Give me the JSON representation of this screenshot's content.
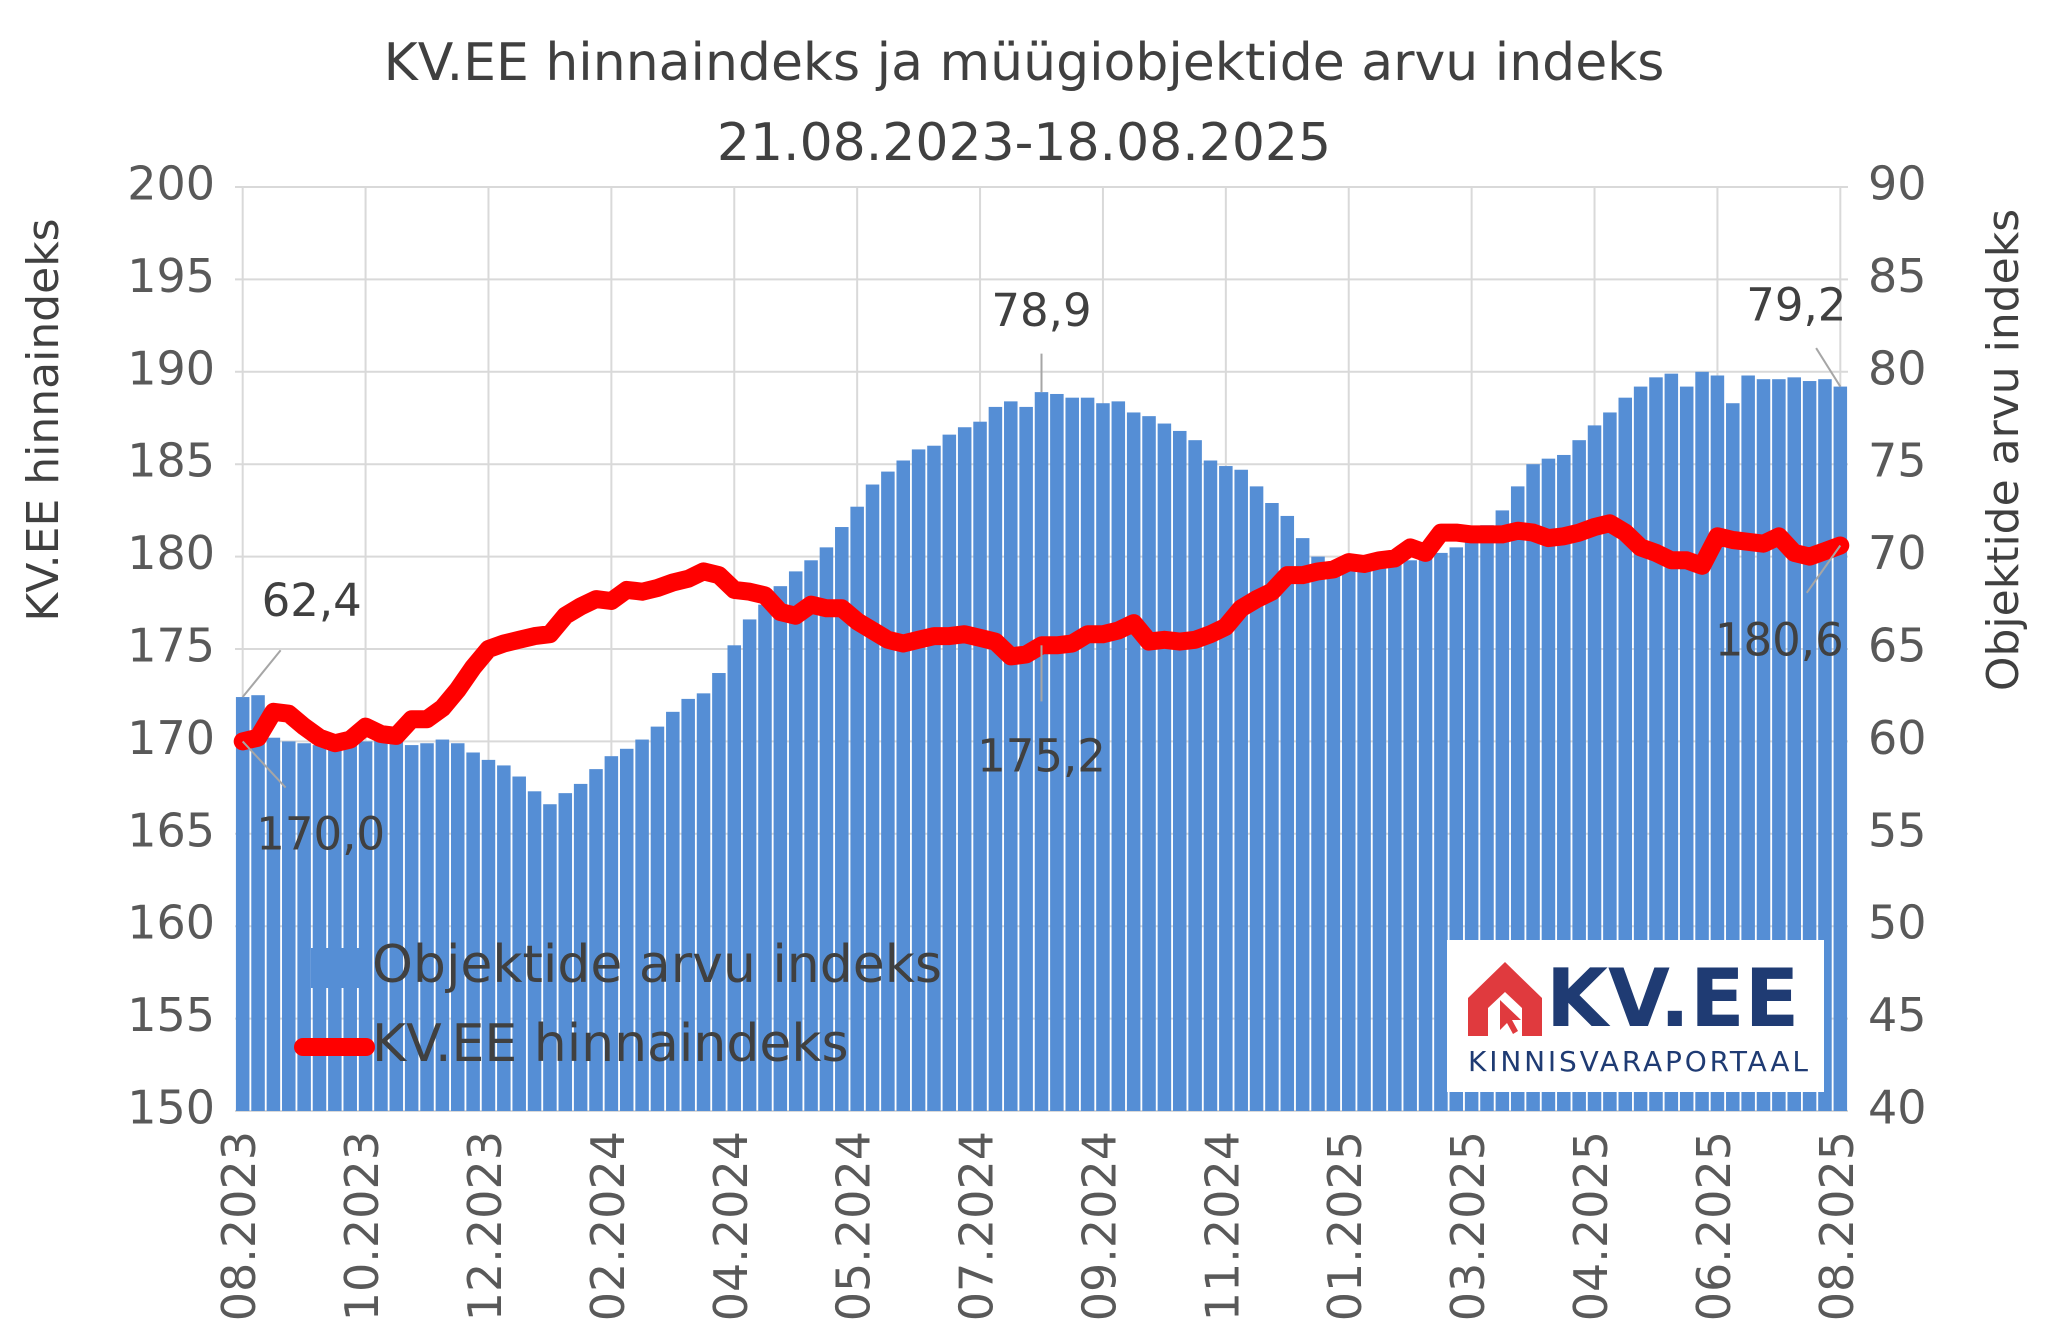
{
  "chart_data": {
    "type": "bar-line",
    "title": "KV.EE hinnaindeks ja müügiobjektide arvu indeks",
    "subtitle": "21.08.2023-18.08.2025",
    "ylabel": "KV.EE hinnaindeks",
    "y2label": "Objektide arvu indeks",
    "categories": [
      "08.2023",
      null,
      null,
      null,
      null,
      null,
      null,
      null,
      "10.2023",
      null,
      null,
      null,
      null,
      null,
      null,
      null,
      "12.2023",
      null,
      null,
      null,
      null,
      null,
      null,
      null,
      "02.2024",
      null,
      null,
      null,
      null,
      null,
      null,
      null,
      "04.2024",
      null,
      null,
      null,
      null,
      null,
      null,
      null,
      "05.2024",
      null,
      null,
      null,
      null,
      null,
      null,
      null,
      "07.2024",
      null,
      null,
      null,
      null,
      null,
      null,
      null,
      "09.2024",
      null,
      null,
      null,
      null,
      null,
      null,
      null,
      "11.2024",
      null,
      null,
      null,
      null,
      null,
      null,
      null,
      "01.2025",
      null,
      null,
      null,
      null,
      null,
      null,
      null,
      "03.2025",
      null,
      null,
      null,
      null,
      null,
      null,
      null,
      "04.2025",
      null,
      null,
      null,
      null,
      null,
      null,
      null,
      "06.2025",
      null,
      null,
      null,
      null,
      null,
      null,
      null,
      "08.2025"
    ],
    "ylim": [
      150,
      200
    ],
    "yticks": [
      150,
      155,
      160,
      165,
      170,
      175,
      180,
      185,
      190,
      195,
      200
    ],
    "y2lim": [
      40,
      90
    ],
    "y2ticks": [
      40,
      45,
      50,
      55,
      60,
      65,
      70,
      75,
      80,
      85,
      90
    ],
    "grid": true,
    "legend": "lower left",
    "series": [
      {
        "name": "Objektide arvu indeks",
        "type": "bar",
        "axis": "y2",
        "color": "#558ed5",
        "values": [
          62.4,
          62.5,
          60.2,
          60.0,
          59.9,
          59.8,
          59.8,
          59.9,
          60.0,
          60.2,
          60.1,
          59.8,
          59.9,
          60.1,
          59.9,
          59.4,
          59.0,
          58.7,
          58.1,
          57.3,
          56.6,
          57.2,
          57.7,
          58.5,
          59.2,
          59.6,
          60.1,
          60.8,
          61.6,
          62.3,
          62.6,
          63.7,
          65.2,
          66.6,
          67.4,
          68.4,
          69.2,
          69.8,
          70.5,
          71.6,
          72.7,
          73.9,
          74.6,
          75.2,
          75.8,
          76.0,
          76.6,
          77.0,
          77.3,
          78.1,
          78.4,
          78.1,
          78.9,
          78.8,
          78.6,
          78.6,
          78.3,
          78.4,
          77.8,
          77.6,
          77.2,
          76.8,
          76.3,
          75.2,
          74.9,
          74.7,
          73.8,
          72.9,
          72.2,
          71.0,
          70.0,
          69.6,
          69.5,
          69.4,
          69.6,
          69.7,
          69.8,
          70.1,
          70.2,
          70.5,
          71.0,
          71.7,
          72.5,
          73.8,
          75.0,
          75.3,
          75.5,
          76.3,
          77.1,
          77.8,
          78.6,
          79.2,
          79.7,
          79.9,
          79.2,
          80.0,
          79.8,
          78.3,
          79.8,
          79.6,
          79.6,
          79.7,
          79.5,
          79.6,
          79.2
        ],
        "value_labels": [
          "62,4",
          null,
          null,
          null,
          null,
          null,
          null,
          null,
          null,
          null,
          null,
          null,
          null,
          null,
          null,
          null,
          null,
          null,
          null,
          null,
          null,
          null,
          null,
          null,
          null,
          null,
          null,
          null,
          null,
          null,
          null,
          null,
          null,
          null,
          null,
          null,
          null,
          null,
          null,
          null,
          null,
          null,
          null,
          null,
          null,
          null,
          null,
          null,
          null,
          null,
          null,
          null,
          "78,9",
          null,
          null,
          null,
          null,
          null,
          null,
          null,
          null,
          null,
          null,
          null,
          null,
          null,
          null,
          null,
          null,
          null,
          null,
          null,
          null,
          null,
          null,
          null,
          null,
          null,
          null,
          null,
          null,
          null,
          null,
          null,
          null,
          null,
          null,
          null,
          null,
          null,
          null,
          null,
          null,
          null,
          null,
          null,
          null,
          null,
          null,
          null,
          null,
          null,
          null,
          null,
          "79,2"
        ]
      },
      {
        "name": "KV.EE hinnaindeks",
        "type": "line",
        "axis": "y",
        "color": "#ff0000",
        "values": [
          170.0,
          170.2,
          171.6,
          171.5,
          170.8,
          170.2,
          169.9,
          170.1,
          170.8,
          170.4,
          170.3,
          171.2,
          171.2,
          171.8,
          172.8,
          174.0,
          175.0,
          175.3,
          175.5,
          175.7,
          175.8,
          176.8,
          177.3,
          177.7,
          177.6,
          178.2,
          178.1,
          178.3,
          178.6,
          178.8,
          179.2,
          179.0,
          178.2,
          178.1,
          177.9,
          177.0,
          176.8,
          177.4,
          177.2,
          177.2,
          176.5,
          176.0,
          175.5,
          175.3,
          175.5,
          175.7,
          175.7,
          175.8,
          175.6,
          175.4,
          174.6,
          174.7,
          175.2,
          175.2,
          175.3,
          175.8,
          175.8,
          176.0,
          176.4,
          175.4,
          175.5,
          175.4,
          175.5,
          175.8,
          176.2,
          177.2,
          177.7,
          178.1,
          179.0,
          179.0,
          179.2,
          179.3,
          179.7,
          179.6,
          179.8,
          179.9,
          180.5,
          180.2,
          181.3,
          181.3,
          181.2,
          181.2,
          181.2,
          181.4,
          181.3,
          181.0,
          181.1,
          181.3,
          181.6,
          181.8,
          181.3,
          180.5,
          180.2,
          179.8,
          179.8,
          179.5,
          181.1,
          180.9,
          180.8,
          180.7,
          181.1,
          180.2,
          180.0,
          180.3,
          180.6
        ],
        "value_labels": [
          "170,0",
          null,
          null,
          null,
          null,
          null,
          null,
          null,
          null,
          null,
          null,
          null,
          null,
          null,
          null,
          null,
          null,
          null,
          null,
          null,
          null,
          null,
          null,
          null,
          null,
          null,
          null,
          null,
          null,
          null,
          null,
          null,
          null,
          null,
          null,
          null,
          null,
          null,
          null,
          null,
          null,
          null,
          null,
          null,
          null,
          null,
          null,
          null,
          null,
          null,
          null,
          null,
          "175,2",
          null,
          null,
          null,
          null,
          null,
          null,
          null,
          null,
          null,
          null,
          null,
          null,
          null,
          null,
          null,
          null,
          null,
          null,
          null,
          null,
          null,
          null,
          null,
          null,
          null,
          null,
          null,
          null,
          null,
          null,
          null,
          null,
          null,
          null,
          null,
          null,
          null,
          null,
          null,
          null,
          null,
          null,
          null,
          null,
          null,
          null,
          null,
          null,
          null,
          null,
          null,
          "180,6"
        ]
      }
    ]
  },
  "logo": {
    "name": "KV.EE",
    "tagline": "KINNISVARAPORTAAL"
  }
}
